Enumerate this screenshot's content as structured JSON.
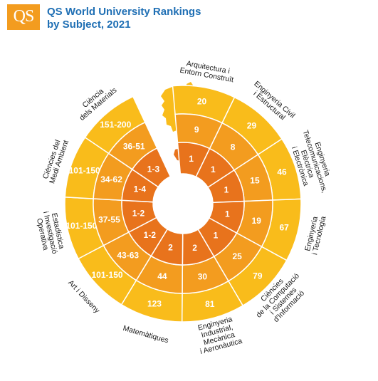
{
  "header": {
    "logo_text": "QS",
    "title_line1": "QS World University Rankings",
    "title_line2": "by Subject, 2021"
  },
  "colors": {
    "outer": "#f9bc1b",
    "middle": "#f39c1f",
    "inner": "#e8731c",
    "text": "#ffffff",
    "label": "#1a1a1a",
    "title": "#1f6fb4"
  },
  "subjects": [
    {
      "label": [
        "Arquitectura i",
        "Entorn Construït"
      ],
      "outer": "20",
      "middle": "9",
      "inner": "1"
    },
    {
      "label": [
        "Enginyeria Civil",
        "i Estructural"
      ],
      "outer": "29",
      "middle": "8",
      "inner": "1"
    },
    {
      "label": [
        "Enginyeria",
        "Telecomunicacions,",
        "Elèctrica",
        "i Electrònica"
      ],
      "outer": "46",
      "middle": "15",
      "inner": "1"
    },
    {
      "label": [
        "Enginyeria",
        "i Tecnologia"
      ],
      "outer": "67",
      "middle": "19",
      "inner": "1"
    },
    {
      "label": [
        "Ciències",
        "de la Computació",
        "i Sistemes",
        "d'Informació"
      ],
      "outer": "79",
      "middle": "25",
      "inner": "1"
    },
    {
      "label": [
        "Enginyeria",
        "Industrial,",
        "Mecànica",
        "i Aeronàutica"
      ],
      "outer": "81",
      "middle": "30",
      "inner": "2"
    },
    {
      "label": [
        "Matemàtiques"
      ],
      "outer": "123",
      "middle": "44",
      "inner": "2"
    },
    {
      "label": [
        "Art i Disseny"
      ],
      "outer": "101-150",
      "middle": "43-63",
      "inner": "1-2"
    },
    {
      "label": [
        "Estadística",
        "i Investigació",
        "Operativa"
      ],
      "outer": "101-150",
      "middle": "37-55",
      "inner": "1-2"
    },
    {
      "label": [
        "Ciències del",
        "Medi Ambient"
      ],
      "outer": "101-150",
      "middle": "34-62",
      "inner": "1-4"
    },
    {
      "label": [
        "Ciència",
        "dels Materials"
      ],
      "outer": "151-200",
      "middle": "36-51",
      "inner": "1-3"
    }
  ]
}
